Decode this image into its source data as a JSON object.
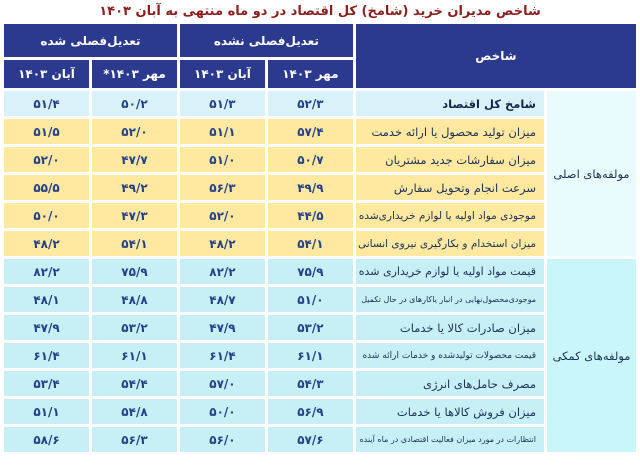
{
  "title": "شاخص مدیران خرید (شامخ) کل اقتصاد در دو ماه منتهی به آبان  ۱۴۰۳",
  "colors": {
    "header_navy": "#2b3a8e",
    "title_red": "#8e1d1d",
    "row_total_blue": "#d9f1f8",
    "row_main_yellow": "#ffe9a1",
    "row_aux_cyan": "#c6f0f5",
    "group_main_bg": "#e9fbfd",
    "group_aux_bg": "#c9f6f8",
    "number_navy": "#24418a"
  },
  "table": {
    "index_header": "شاخص",
    "group_unadjusted": "تعدیل‌فصلی نشده",
    "group_adjusted": "تعدیل‌فصلی شده",
    "col_mehr_unadjusted": "مهر ۱۴۰۳",
    "col_aban_unadjusted": "آبان ۱۴۰۳",
    "col_mehr_adjusted": "مهر ۱۴۰۳*",
    "col_aban_adjusted": "آبان ۱۴۰۳",
    "group_main": "مولفه‌های اصلی",
    "group_auxiliary": "مولفه‌های کمکی",
    "rows": [
      {
        "label": "شامخ کل اقتصاد",
        "values": [
          "۵۲/۳",
          "۵۱/۳",
          "۵۰/۲",
          "۵۱/۴"
        ]
      },
      {
        "label": "میزان تولید محصول یا ارائه خدمت",
        "values": [
          "۵۷/۴",
          "۵۱/۱",
          "۵۲/۰",
          "۵۱/۵"
        ]
      },
      {
        "label": "میزان سفارشات جدید مشتریان",
        "values": [
          "۵۰/۷",
          "۵۱/۰",
          "۴۷/۷",
          "۵۲/۰"
        ]
      },
      {
        "label": "سرعت انجام وتحویل سفارش",
        "values": [
          "۴۹/۹",
          "۵۶/۳",
          "۴۹/۲",
          "۵۵/۵"
        ]
      },
      {
        "label": "موجودی مواد اولیه یا لوازم خریداری‌شده",
        "values": [
          "۴۴/۵",
          "۵۲/۰",
          "۴۷/۳",
          "۵۰/۰"
        ]
      },
      {
        "label": "میزان استخدام و بکارگیری نیروی انسانی",
        "values": [
          "۵۴/۱",
          "۴۸/۲",
          "۵۴/۱",
          "۴۸/۲"
        ]
      },
      {
        "label": "قیمت مواد اولیه یا لوازم خریداری شده",
        "values": [
          "۷۵/۹",
          "۸۲/۲",
          "۷۵/۹",
          "۸۲/۲"
        ]
      },
      {
        "label": "موجودی‌محصول‌نهایی در انبار یاکارهای در حال تکمیل",
        "values": [
          "۵۱/۰",
          "۴۸/۷",
          "۴۸/۸",
          "۴۸/۱"
        ]
      },
      {
        "label": "میزان صادرات کالا یا خدمات",
        "values": [
          "۵۳/۲",
          "۴۷/۹",
          "۵۳/۲",
          "۴۷/۹"
        ]
      },
      {
        "label": "قیمت محصولات تولیدشده و خدمات ارائه شده",
        "values": [
          "۶۱/۱",
          "۶۱/۴",
          "۶۱/۱",
          "۶۱/۴"
        ]
      },
      {
        "label": "مصرف حامل‌های انرژی",
        "values": [
          "۵۴/۳",
          "۵۷/۰",
          "۵۴/۴",
          "۵۳/۴"
        ]
      },
      {
        "label": "میزان فروش کالاها یا خدمات",
        "values": [
          "۵۶/۹",
          "۵۰/۰",
          "۵۴/۸",
          "۵۱/۱"
        ]
      },
      {
        "label": "انتظارات در مورد میزان فعالیت اقتصادی در ماه آینده",
        "values": [
          "۵۷/۶",
          "۵۶/۰",
          "۵۶/۳",
          "۵۸/۶"
        ]
      }
    ]
  },
  "chart_data": {
    "type": "table",
    "title": "شاخص مدیران خرید (شامخ) کل اقتصاد در دو ماه منتهی به آبان ۱۴۰۳",
    "columns": [
      "شاخص",
      "تعدیل‌فصلی نشده - مهر ۱۴۰۳",
      "تعدیل‌فصلی نشده - آبان ۱۴۰۳",
      "تعدیل‌فصلی شده - مهر ۱۴۰۳*",
      "تعدیل‌فصلی شده - آبان ۱۴۰۳"
    ],
    "rows": [
      {
        "group": "مولفه‌های اصلی",
        "label": "شامخ کل اقتصاد",
        "values": [
          52.3,
          51.3,
          50.2,
          51.4
        ]
      },
      {
        "group": "مولفه‌های اصلی",
        "label": "میزان تولید محصول یا ارائه خدمت",
        "values": [
          57.4,
          51.1,
          52.0,
          51.5
        ]
      },
      {
        "group": "مولفه‌های اصلی",
        "label": "میزان سفارشات جدید مشتریان",
        "values": [
          50.7,
          51.0,
          47.7,
          52.0
        ]
      },
      {
        "group": "مولفه‌های اصلی",
        "label": "سرعت انجام وتحویل سفارش",
        "values": [
          49.9,
          56.3,
          49.2,
          55.5
        ]
      },
      {
        "group": "مولفه‌های اصلی",
        "label": "موجودی مواد اولیه یا لوازم خریداری‌شده",
        "values": [
          44.5,
          52.0,
          47.3,
          50.0
        ]
      },
      {
        "group": "مولفه‌های اصلی",
        "label": "میزان استخدام و بکارگیری نیروی انسانی",
        "values": [
          54.1,
          48.2,
          54.1,
          48.2
        ]
      },
      {
        "group": "مولفه‌های کمکی",
        "label": "قیمت مواد اولیه یا لوازم خریداری شده",
        "values": [
          75.9,
          82.2,
          75.9,
          82.2
        ]
      },
      {
        "group": "مولفه‌های کمکی",
        "label": "موجودی محصول نهایی در انبار یا کارهای در حال تکمیل",
        "values": [
          51.0,
          48.7,
          48.8,
          48.1
        ]
      },
      {
        "group": "مولفه‌های کمکی",
        "label": "میزان صادرات کالا یا خدمات",
        "values": [
          53.2,
          47.9,
          53.2,
          47.9
        ]
      },
      {
        "group": "مولفه‌های کمکی",
        "label": "قیمت محصولات تولیدشده و خدمات ارائه شده",
        "values": [
          61.1,
          61.4,
          61.1,
          61.4
        ]
      },
      {
        "group": "مولفه‌های کمکی",
        "label": "مصرف حامل‌های انرژی",
        "values": [
          54.3,
          57.0,
          54.4,
          53.4
        ]
      },
      {
        "group": "مولفه‌های کمکی",
        "label": "میزان فروش کالاها یا خدمات",
        "values": [
          56.9,
          50.0,
          54.8,
          51.1
        ]
      },
      {
        "group": "مولفه‌های کمکی",
        "label": "انتظارات در مورد میزان فعالیت اقتصادی در ماه آینده",
        "values": [
          57.6,
          56.0,
          56.3,
          58.6
        ]
      }
    ]
  }
}
